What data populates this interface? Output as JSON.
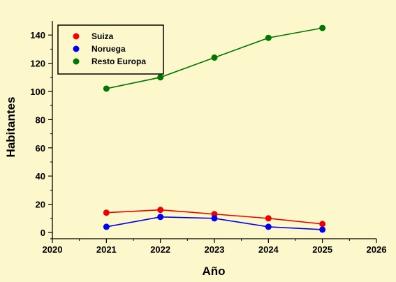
{
  "chart_data": {
    "type": "line",
    "title": "",
    "xlabel": "Año",
    "ylabel": "Habitantes",
    "xlim": [
      2020,
      2026
    ],
    "ylim": [
      0,
      150
    ],
    "xticks": [
      2020,
      2021,
      2022,
      2023,
      2024,
      2025,
      2026
    ],
    "yticks": [
      0,
      20,
      40,
      60,
      80,
      100,
      120,
      140
    ],
    "grid": false,
    "legend_position": "top-left",
    "x": [
      2021,
      2022,
      2023,
      2024,
      2025
    ],
    "series": [
      {
        "name": "Suiza",
        "color": "#ee0000",
        "values": [
          14,
          16,
          13,
          10,
          6
        ]
      },
      {
        "name": "Noruega",
        "color": "#0000ee",
        "values": [
          4,
          11,
          10,
          4,
          2
        ]
      },
      {
        "name": "Resto Europa",
        "color": "#007700",
        "values": [
          102,
          110,
          124,
          138,
          145
        ]
      }
    ],
    "background_color": "#fdf8cc"
  }
}
